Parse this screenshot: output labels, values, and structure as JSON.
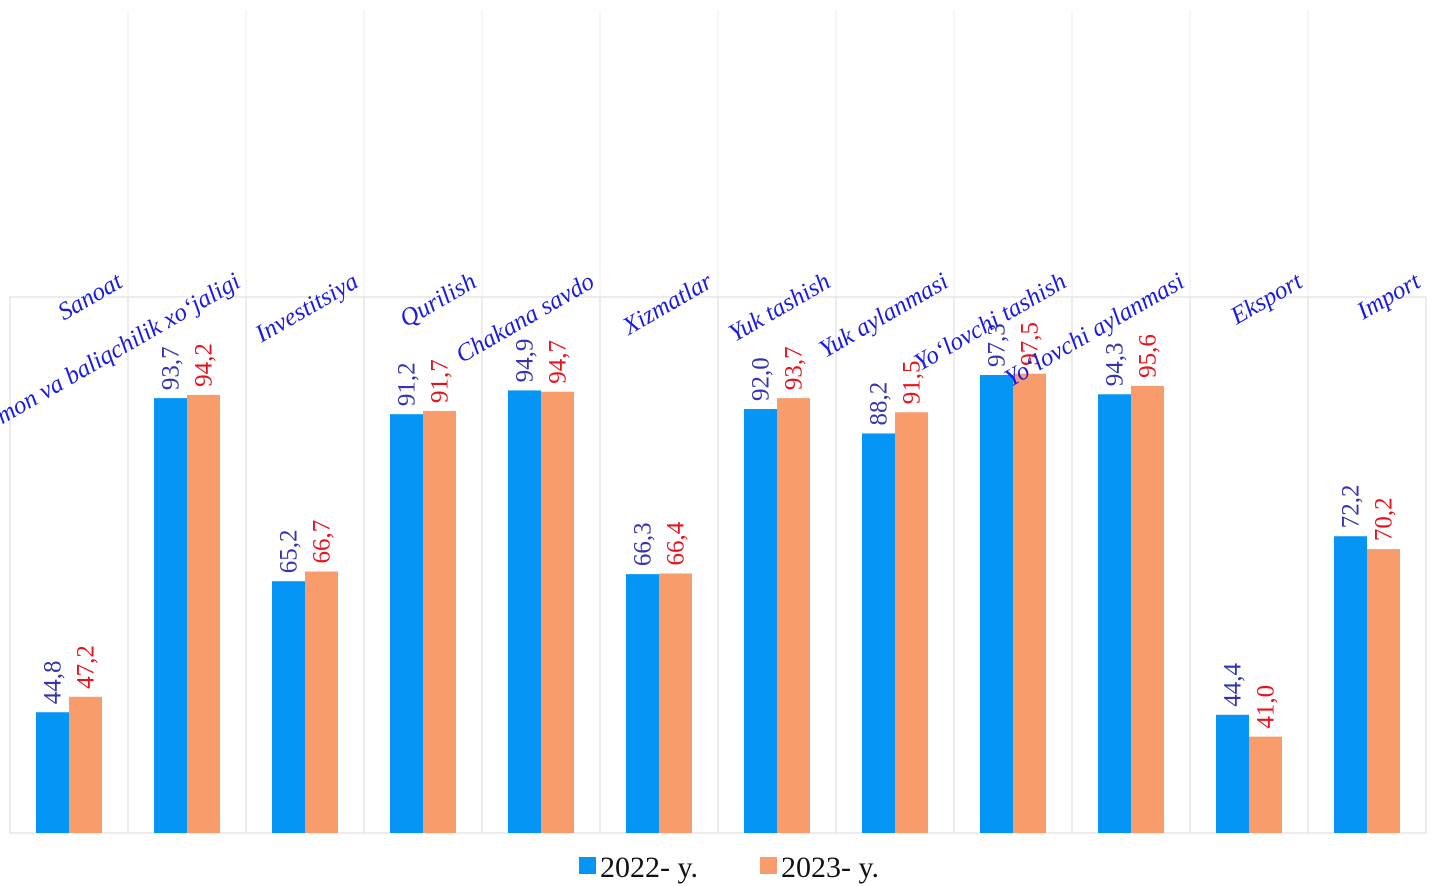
{
  "chart_data": {
    "type": "bar",
    "categories": [
      "Sanoat",
      "Qishloq, o‘rmon va baliqchilik xo‘jaligi",
      "Investitsiya",
      "Qurilish",
      "Chakana savdo",
      "Xizmatlar",
      "Yuk tashish",
      "Yuk aylanmasi",
      "Yo‘lovchi tashish",
      "Yo‘lovchi aylanmasi",
      "Eksport",
      "Import"
    ],
    "series": [
      {
        "name": "2022- y.",
        "color": "#0595f5",
        "label_color": "#3333b3",
        "values": [
          44.8,
          93.7,
          65.2,
          91.2,
          94.9,
          66.3,
          92.0,
          88.2,
          97.3,
          94.3,
          44.4,
          72.2
        ],
        "labels": [
          "44,8",
          "93,7",
          "65,2",
          "91,2",
          "94,9",
          "66,3",
          "92,0",
          "88,2",
          "97,3",
          "94,3",
          "44,4",
          "72,2"
        ]
      },
      {
        "name": "2023- y.",
        "color": "#f89c6b",
        "label_color": "#e8121c",
        "values": [
          47.2,
          94.2,
          66.7,
          91.7,
          94.7,
          66.4,
          93.7,
          91.5,
          97.5,
          95.6,
          41.0,
          70.2
        ],
        "labels": [
          "47,2",
          "94,2",
          "66,7",
          "91,7",
          "94,7",
          "66,4",
          "93,7",
          "91,5",
          "97,5",
          "95,6",
          "41,0",
          "70,2"
        ]
      }
    ],
    "ylim": [
      0,
      100
    ],
    "grid": "vertical separators",
    "legend_position": "bottom"
  }
}
